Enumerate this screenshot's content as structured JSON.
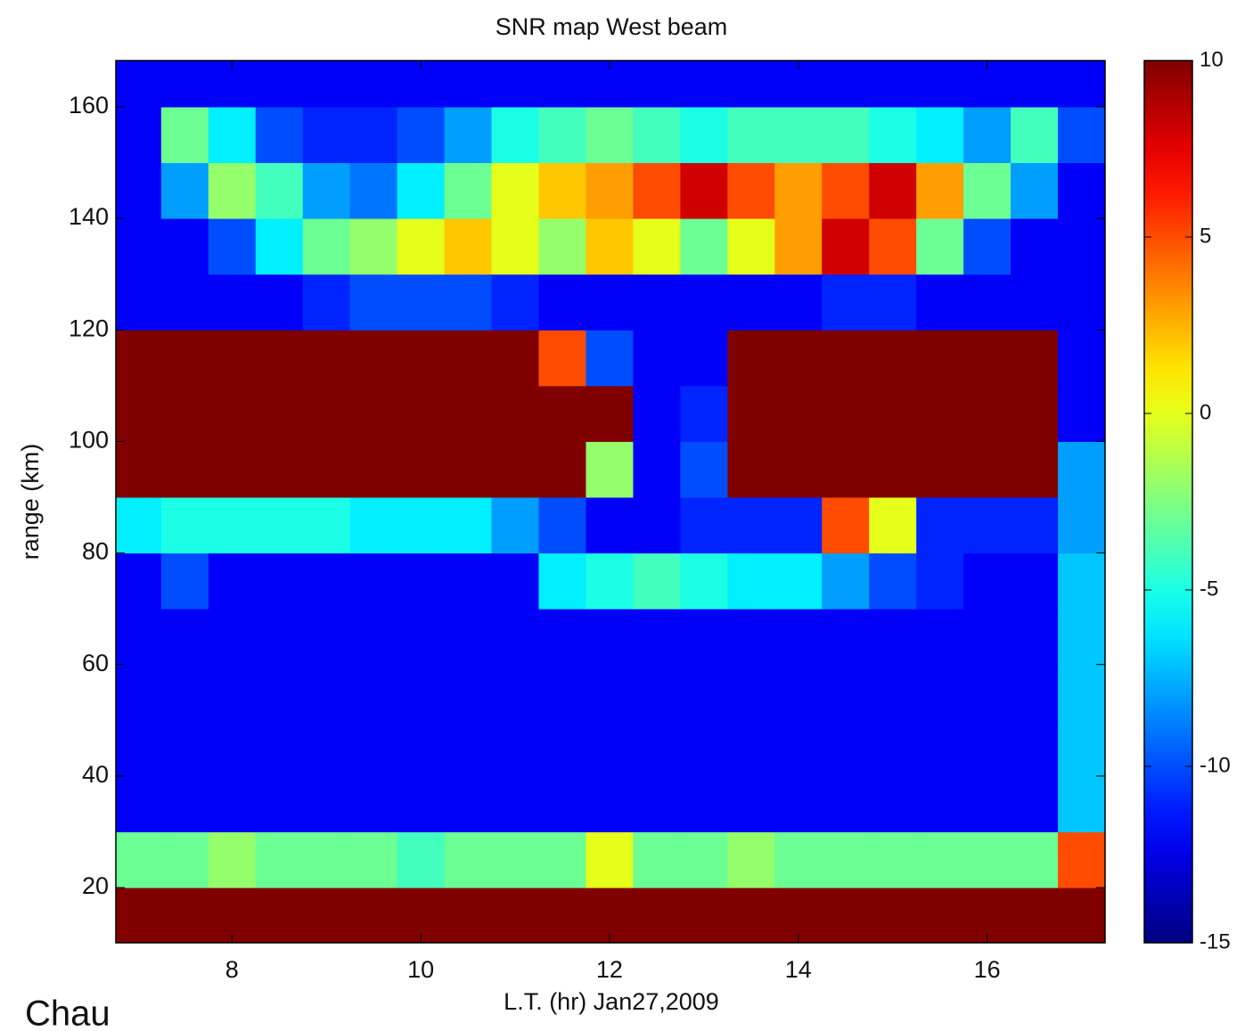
{
  "chart_data": {
    "type": "heatmap",
    "title": "SNR map West beam",
    "x_label": "L.T. (hr) Jan27,2009",
    "y_label": "range (km)",
    "x": [
      7,
      7.5,
      8,
      8.5,
      9,
      9.5,
      10,
      10.5,
      11,
      11.5,
      12,
      12.5,
      13,
      13.5,
      14,
      14.5,
      15,
      15.5,
      16,
      16.5,
      17
    ],
    "y": [
      15,
      25,
      35,
      45,
      55,
      65,
      75,
      85,
      95,
      105,
      115,
      125,
      135,
      145,
      155,
      165
    ],
    "z": [
      [
        10,
        10,
        10,
        10,
        10,
        10,
        10,
        10,
        10,
        10,
        10,
        10,
        10,
        10,
        10,
        10,
        10,
        10,
        10,
        10,
        10
      ],
      [
        -3,
        -3,
        -2,
        -3,
        -3,
        -3,
        -4,
        -3,
        -3,
        -3,
        0,
        -3,
        -3,
        -2,
        -3,
        -3,
        -3,
        -3,
        -3,
        -3,
        5
      ],
      [
        -12,
        -12,
        -12,
        -12,
        -12,
        -12,
        -12,
        -12,
        -12,
        -12,
        -12,
        -12,
        -12,
        -12,
        -12,
        -12,
        -12,
        -12,
        -12,
        -12,
        -7
      ],
      [
        -12,
        -12,
        -12,
        -12,
        -12,
        -12,
        -12,
        -12,
        -12,
        -12,
        -12,
        -12,
        -12,
        -12,
        -12,
        -12,
        -12,
        -12,
        -12,
        -12,
        -7
      ],
      [
        -12,
        -12,
        -12,
        -12,
        -12,
        -12,
        -12,
        -12,
        -12,
        -12,
        -12,
        -12,
        -12,
        -12,
        -12,
        -12,
        -12,
        -12,
        -12,
        -12,
        -7
      ],
      [
        -12,
        -12,
        -12,
        -12,
        -12,
        -12,
        -12,
        -12,
        -12,
        -12,
        -12,
        -12,
        -12,
        -12,
        -12,
        -12,
        -12,
        -12,
        -12,
        -12,
        -7
      ],
      [
        -12,
        -10,
        -12,
        -12,
        -12,
        -12,
        -12,
        -12,
        -12,
        -6,
        -5,
        -4,
        -5,
        -6,
        -6,
        -8,
        -10,
        -11,
        -12,
        -12,
        -7
      ],
      [
        -6,
        -5,
        -5,
        -5,
        -5,
        -6,
        -6,
        -6,
        -8,
        -10,
        -12,
        -12,
        -11,
        -11,
        -11,
        5,
        0,
        -11,
        -11,
        -11,
        -8
      ],
      [
        10,
        10,
        10,
        10,
        10,
        10,
        10,
        10,
        10,
        10,
        -2,
        -12,
        -10,
        10,
        10,
        10,
        10,
        10,
        10,
        10,
        -8
      ],
      [
        10,
        10,
        10,
        10,
        10,
        10,
        10,
        10,
        10,
        10,
        10,
        -12,
        -11,
        10,
        10,
        10,
        10,
        10,
        10,
        10,
        -12
      ],
      [
        10,
        10,
        10,
        10,
        10,
        10,
        10,
        10,
        10,
        5,
        -10,
        -12,
        -12,
        10,
        10,
        10,
        10,
        10,
        10,
        10,
        -12
      ],
      [
        -12,
        -12,
        -12,
        -12,
        -11,
        -10,
        -10,
        -10,
        -11,
        -12,
        -12,
        -12,
        -12,
        -12,
        -12,
        -11,
        -11,
        -12,
        -12,
        -12,
        -12
      ],
      [
        -12,
        -12,
        -10,
        -6,
        -3,
        -2,
        0,
        2,
        0,
        -2,
        2,
        0,
        -3,
        0,
        3,
        8,
        5,
        -3,
        -10,
        -12,
        -12
      ],
      [
        -12,
        -8,
        -2,
        -4,
        -8,
        -9,
        -6,
        -3,
        0,
        2,
        3,
        5,
        8,
        5,
        3,
        5,
        8,
        3,
        -3,
        -8,
        -12
      ],
      [
        -12,
        -3,
        -6,
        -10,
        -11,
        -11,
        -10,
        -8,
        -5,
        -4,
        -3,
        -4,
        -5,
        -4,
        -4,
        -4,
        -5,
        -6,
        -8,
        -4,
        -10
      ],
      [
        -12,
        -12,
        -12,
        -12,
        -12,
        -12,
        -12,
        -12,
        -12,
        -12,
        -12,
        -12,
        -12,
        -12,
        -12,
        -12,
        -12,
        -12,
        -12,
        -12,
        -12
      ]
    ],
    "xlim": [
      6.77,
      17.25
    ],
    "xticks": [
      8,
      10,
      12,
      14,
      16
    ],
    "ylim": [
      10.1,
      168.3
    ],
    "yticks": [
      20,
      40,
      60,
      80,
      100,
      120,
      140,
      160
    ],
    "colormap": "jet",
    "clim": [
      -15,
      10
    ],
    "cticks": [
      -15,
      -10,
      -5,
      0,
      5,
      10
    ]
  },
  "caption": "Chau"
}
